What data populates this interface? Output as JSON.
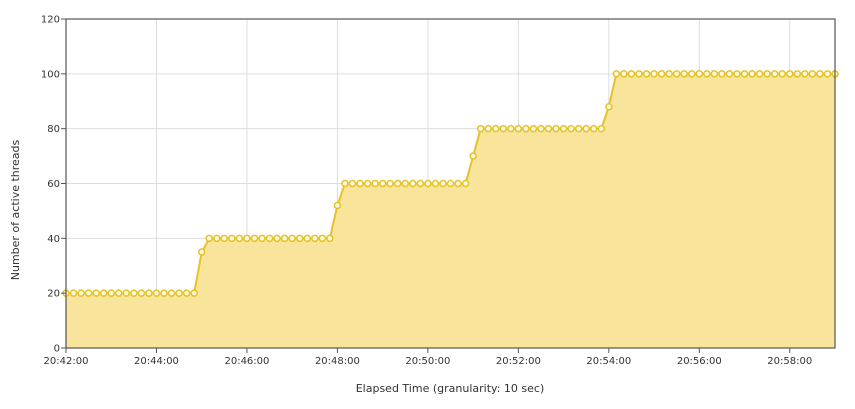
{
  "chart_data": {
    "type": "area",
    "title": "",
    "xlabel": "Elapsed Time (granularity: 10 sec)",
    "ylabel": "Number of active threads",
    "x_range": [
      "20:42:00",
      "20:59:00"
    ],
    "ylim": [
      0,
      120
    ],
    "yticks": [
      "0",
      "20",
      "40",
      "60",
      "80",
      "100",
      "120"
    ],
    "xticks": [
      "20:42:00",
      "20:44:00",
      "20:46:00",
      "20:48:00",
      "20:50:00",
      "20:52:00",
      "20:54:00",
      "20:56:00",
      "20:58:00"
    ],
    "grid": true,
    "legend": "none",
    "colors": {
      "line": "#e6c229",
      "fill": "#f8e49b",
      "marker_fill": "#fffbe0",
      "grid": "#dddddd",
      "frame": "#555555"
    },
    "x": [
      "20:42:00",
      "20:42:10",
      "20:42:20",
      "20:42:30",
      "20:42:40",
      "20:42:50",
      "20:43:00",
      "20:43:10",
      "20:43:20",
      "20:43:30",
      "20:43:40",
      "20:43:50",
      "20:44:00",
      "20:44:10",
      "20:44:20",
      "20:44:30",
      "20:44:40",
      "20:44:50",
      "20:45:00",
      "20:45:10",
      "20:45:20",
      "20:45:30",
      "20:45:40",
      "20:45:50",
      "20:46:00",
      "20:46:10",
      "20:46:20",
      "20:46:30",
      "20:46:40",
      "20:46:50",
      "20:47:00",
      "20:47:10",
      "20:47:20",
      "20:47:30",
      "20:47:40",
      "20:47:50",
      "20:48:00",
      "20:48:10",
      "20:48:20",
      "20:48:30",
      "20:48:40",
      "20:48:50",
      "20:49:00",
      "20:49:10",
      "20:49:20",
      "20:49:30",
      "20:49:40",
      "20:49:50",
      "20:50:00",
      "20:50:10",
      "20:50:20",
      "20:50:30",
      "20:50:40",
      "20:50:50",
      "20:51:00",
      "20:51:10",
      "20:51:20",
      "20:51:30",
      "20:51:40",
      "20:51:50",
      "20:52:00",
      "20:52:10",
      "20:52:20",
      "20:52:30",
      "20:52:40",
      "20:52:50",
      "20:53:00",
      "20:53:10",
      "20:53:20",
      "20:53:30",
      "20:53:40",
      "20:53:50",
      "20:54:00",
      "20:54:10",
      "20:54:20",
      "20:54:30",
      "20:54:40",
      "20:54:50",
      "20:55:00",
      "20:55:10",
      "20:55:20",
      "20:55:30",
      "20:55:40",
      "20:55:50",
      "20:56:00",
      "20:56:10",
      "20:56:20",
      "20:56:30",
      "20:56:40",
      "20:56:50",
      "20:57:00",
      "20:57:10",
      "20:57:20",
      "20:57:30",
      "20:57:40",
      "20:57:50",
      "20:58:00",
      "20:58:10",
      "20:58:20",
      "20:58:30",
      "20:58:40",
      "20:58:50",
      "20:59:00"
    ],
    "series": [
      {
        "values": [
          20,
          20,
          20,
          20,
          20,
          20,
          20,
          20,
          20,
          20,
          20,
          20,
          20,
          20,
          20,
          20,
          20,
          20,
          35,
          40,
          40,
          40,
          40,
          40,
          40,
          40,
          40,
          40,
          40,
          40,
          40,
          40,
          40,
          40,
          40,
          40,
          52,
          60,
          60,
          60,
          60,
          60,
          60,
          60,
          60,
          60,
          60,
          60,
          60,
          60,
          60,
          60,
          60,
          60,
          70,
          80,
          80,
          80,
          80,
          80,
          80,
          80,
          80,
          80,
          80,
          80,
          80,
          80,
          80,
          80,
          80,
          80,
          88,
          100,
          100,
          100,
          100,
          100,
          100,
          100,
          100,
          100,
          100,
          100,
          100,
          100,
          100,
          100,
          100,
          100,
          100,
          100,
          100,
          100,
          100,
          100,
          100,
          100,
          100,
          100,
          100,
          100,
          100
        ]
      }
    ]
  }
}
